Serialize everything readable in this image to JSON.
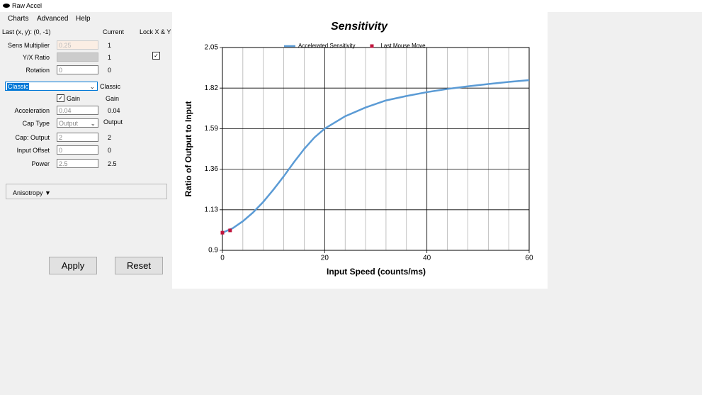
{
  "window": {
    "title": "Raw Accel"
  },
  "menu": [
    "Charts",
    "Advanced",
    "Help"
  ],
  "panel": {
    "last": "Last (x, y): (0, -1)",
    "current_header": "Current",
    "lock": "Lock X & Y",
    "fields": [
      {
        "label": "Sens Multiplier",
        "input": "0.25",
        "current": "1"
      },
      {
        "label": "Y/X Ratio",
        "current": "1"
      },
      {
        "label": "Rotation",
        "input": "0",
        "current": "0"
      },
      {
        "label": "Acceleration",
        "input": "0.04",
        "current": "0.04"
      },
      {
        "label": "Cap Type",
        "input": "Output",
        "current": "Output"
      },
      {
        "label": "Cap: Output",
        "input": "2",
        "current": "2"
      },
      {
        "label": "Input Offset",
        "input": "0",
        "current": "0"
      },
      {
        "label": "Power",
        "input": "2.5",
        "current": "2.5"
      }
    ],
    "mode": {
      "selected": "Classic",
      "current": "Classic"
    },
    "gain": {
      "label": "Gain",
      "current": "Gain"
    },
    "anisotropy": "Anisotropy ▼",
    "buttons": [
      "Apply",
      "Reset"
    ]
  },
  "chart_data": {
    "type": "line",
    "title": "Sensitivity",
    "x_label": "Input Speed (counts/ms)",
    "y_label": "Ratio of Output to Input",
    "xlim": [
      0,
      60
    ],
    "ylim": [
      0.9,
      2.05
    ],
    "xticks": [
      0,
      20,
      40,
      60
    ],
    "yticks": [
      0.9,
      1.13,
      1.36,
      1.59,
      1.82,
      2.05
    ],
    "x_minor_ticks": [
      4,
      8,
      12,
      16,
      24,
      28,
      32,
      36,
      44,
      48,
      52,
      56
    ],
    "grid": true,
    "legend": "top",
    "series": [
      {
        "name": "Accelerated Sensitivity",
        "color": "#5b9bd5",
        "style": "line",
        "x": [
          0,
          2,
          4,
          6,
          8,
          10,
          12,
          14,
          16,
          18,
          20,
          24,
          28,
          32,
          36,
          40,
          44,
          48,
          52,
          56,
          60
        ],
        "values": [
          1.0,
          1.025,
          1.065,
          1.115,
          1.175,
          1.245,
          1.32,
          1.4,
          1.475,
          1.54,
          1.59,
          1.66,
          1.71,
          1.75,
          1.775,
          1.797,
          1.815,
          1.83,
          1.843,
          1.855,
          1.865
        ]
      },
      {
        "name": "Last Mouse Move",
        "color": "#c0143c",
        "style": "marker",
        "x": [
          0,
          1.5
        ],
        "values": [
          1.0,
          1.013
        ]
      }
    ]
  }
}
